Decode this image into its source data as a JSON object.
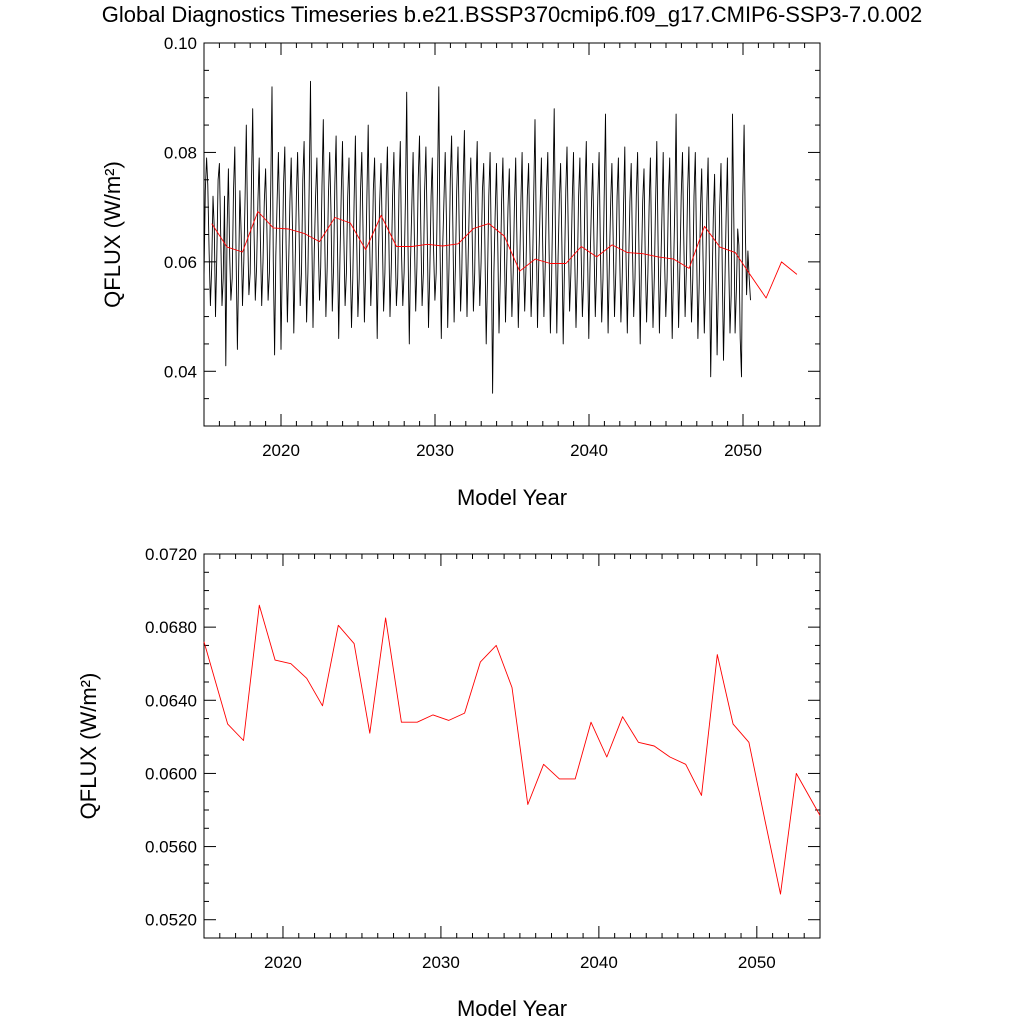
{
  "title": "Global Diagnostics Timeseries b.e21.BSSP370cmip6.f09_g17.CMIP6-SSP3-7.0.002",
  "chart_data": [
    {
      "type": "line",
      "title": "Global Diagnostics Timeseries b.e21.BSSP370cmip6.f09_g17.CMIP6-SSP3-7.0.002",
      "xlabel": "Model Year",
      "ylabel": "QFLUX (W/m²)",
      "xlim": [
        2015.0,
        2055.0
      ],
      "ylim": [
        0.03,
        0.1
      ],
      "x_ticks": [
        "2020",
        "2030",
        "2040",
        "2050"
      ],
      "y_ticks": [
        "0.04",
        "0.06",
        "0.08",
        "0.10"
      ],
      "grid": false,
      "series": [
        {
          "name": "",
          "color": "#000000",
          "x_start": 2015.0,
          "x_step": 0.0833,
          "values": [
            0.057,
            0.073,
            0.079,
            0.074,
            0.062,
            0.052,
            0.059,
            0.072,
            0.066,
            0.05,
            0.061,
            0.075,
            0.078,
            0.065,
            0.052,
            0.057,
            0.072,
            0.041,
            0.066,
            0.077,
            0.061,
            0.053,
            0.057,
            0.073,
            0.081,
            0.061,
            0.044,
            0.058,
            0.073,
            0.065,
            0.052,
            0.06,
            0.072,
            0.085,
            0.066,
            0.054,
            0.058,
            0.075,
            0.088,
            0.066,
            0.053,
            0.059,
            0.071,
            0.079,
            0.064,
            0.052,
            0.06,
            0.071,
            0.077,
            0.066,
            0.053,
            0.058,
            0.073,
            0.092,
            0.06,
            0.043,
            0.061,
            0.071,
            0.08,
            0.067,
            0.044,
            0.06,
            0.074,
            0.081,
            0.063,
            0.049,
            0.06,
            0.071,
            0.079,
            0.066,
            0.047,
            0.059,
            0.072,
            0.08,
            0.068,
            0.052,
            0.058,
            0.075,
            0.082,
            0.064,
            0.049,
            0.058,
            0.074,
            0.093,
            0.065,
            0.048,
            0.062,
            0.072,
            0.079,
            0.064,
            0.053,
            0.059,
            0.074,
            0.086,
            0.066,
            0.05,
            0.059,
            0.072,
            0.08,
            0.069,
            0.051,
            0.059,
            0.074,
            0.083,
            0.064,
            0.046,
            0.061,
            0.073,
            0.082,
            0.065,
            0.052,
            0.058,
            0.072,
            0.079,
            0.061,
            0.048,
            0.057,
            0.071,
            0.083,
            0.064,
            0.05,
            0.057,
            0.073,
            0.08,
            0.065,
            0.049,
            0.058,
            0.072,
            0.085,
            0.065,
            0.052,
            0.059,
            0.073,
            0.079,
            0.063,
            0.046,
            0.062,
            0.071,
            0.078,
            0.065,
            0.051,
            0.058,
            0.073,
            0.081,
            0.066,
            0.05,
            0.059,
            0.072,
            0.08,
            0.064,
            0.052,
            0.057,
            0.073,
            0.082,
            0.061,
            0.052,
            0.058,
            0.071,
            0.091,
            0.063,
            0.045,
            0.06,
            0.07,
            0.08,
            0.064,
            0.051,
            0.059,
            0.075,
            0.083,
            0.066,
            0.052,
            0.058,
            0.073,
            0.081,
            0.066,
            0.048,
            0.058,
            0.072,
            0.079,
            0.062,
            0.053,
            0.058,
            0.074,
            0.092,
            0.063,
            0.046,
            0.062,
            0.071,
            0.08,
            0.067,
            0.048,
            0.059,
            0.075,
            0.083,
            0.066,
            0.049,
            0.059,
            0.073,
            0.081,
            0.065,
            0.051,
            0.058,
            0.074,
            0.084,
            0.064,
            0.05,
            0.062,
            0.072,
            0.079,
            0.066,
            0.051,
            0.058,
            0.074,
            0.082,
            0.064,
            0.052,
            0.06,
            0.073,
            0.078,
            0.063,
            0.045,
            0.057,
            0.072,
            0.08,
            0.061,
            0.036,
            0.058,
            0.069,
            0.078,
            0.063,
            0.047,
            0.057,
            0.071,
            0.079,
            0.065,
            0.049,
            0.059,
            0.07,
            0.077,
            0.062,
            0.05,
            0.058,
            0.07,
            0.079,
            0.063,
            0.048,
            0.058,
            0.071,
            0.08,
            0.062,
            0.051,
            0.059,
            0.072,
            0.078,
            0.064,
            0.05,
            0.057,
            0.072,
            0.086,
            0.065,
            0.048,
            0.06,
            0.07,
            0.079,
            0.063,
            0.05,
            0.059,
            0.073,
            0.08,
            0.062,
            0.047,
            0.057,
            0.072,
            0.088,
            0.064,
            0.047,
            0.061,
            0.071,
            0.078,
            0.063,
            0.045,
            0.059,
            0.073,
            0.081,
            0.065,
            0.051,
            0.058,
            0.071,
            0.08,
            0.061,
            0.048,
            0.058,
            0.072,
            0.079,
            0.062,
            0.05,
            0.057,
            0.073,
            0.082,
            0.061,
            0.046,
            0.06,
            0.07,
            0.078,
            0.063,
            0.05,
            0.058,
            0.072,
            0.08,
            0.062,
            0.049,
            0.057,
            0.072,
            0.087,
            0.062,
            0.047,
            0.06,
            0.071,
            0.078,
            0.064,
            0.05,
            0.058,
            0.072,
            0.079,
            0.062,
            0.049,
            0.057,
            0.07,
            0.081,
            0.061,
            0.047,
            0.059,
            0.071,
            0.078,
            0.062,
            0.05,
            0.057,
            0.072,
            0.08,
            0.063,
            0.045,
            0.059,
            0.071,
            0.077,
            0.06,
            0.049,
            0.058,
            0.07,
            0.079,
            0.061,
            0.048,
            0.057,
            0.071,
            0.082,
            0.063,
            0.047,
            0.058,
            0.069,
            0.08,
            0.061,
            0.05,
            0.057,
            0.072,
            0.079,
            0.062,
            0.046,
            0.058,
            0.07,
            0.087,
            0.063,
            0.048,
            0.059,
            0.072,
            0.08,
            0.064,
            0.05,
            0.058,
            0.073,
            0.081,
            0.061,
            0.049,
            0.057,
            0.072,
            0.08,
            0.062,
            0.046,
            0.056,
            0.07,
            0.077,
            0.061,
            0.047,
            0.056,
            0.071,
            0.079,
            0.06,
            0.039,
            0.055,
            0.068,
            0.076,
            0.06,
            0.043,
            0.056,
            0.07,
            0.078,
            0.058,
            0.042,
            0.055,
            0.068,
            0.079,
            0.06,
            0.047,
            0.054,
            0.087,
            0.068,
            0.047,
            0.055,
            0.066,
            0.063,
            0.046,
            0.039,
            0.072,
            0.085,
            0.065,
            0.054,
            0.062,
            0.057,
            0.053
          ]
        },
        {
          "name": "",
          "color": "#ff0000",
          "x": [
            2015.5,
            2016.5,
            2017.5,
            2018.5,
            2019.5,
            2020.5,
            2021.5,
            2022.5,
            2023.5,
            2024.5,
            2025.5,
            2026.5,
            2027.5,
            2028.5,
            2029.5,
            2030.5,
            2031.5,
            2032.5,
            2033.5,
            2034.5,
            2035.5,
            2036.5,
            2037.5,
            2038.5,
            2039.5,
            2040.5,
            2041.5,
            2042.5,
            2043.5,
            2044.5,
            2045.5,
            2046.5,
            2047.5,
            2048.5,
            2049.5,
            2050.5,
            2051.5,
            2052.5,
            2053.5
          ],
          "values": [
            0.067,
            0.0627,
            0.0618,
            0.0692,
            0.0662,
            0.066,
            0.0652,
            0.0637,
            0.0681,
            0.0671,
            0.0622,
            0.0685,
            0.0628,
            0.0628,
            0.0632,
            0.0629,
            0.0633,
            0.0661,
            0.067,
            0.0647,
            0.0583,
            0.0605,
            0.0597,
            0.0597,
            0.0628,
            0.0609,
            0.0631,
            0.0617,
            0.0615,
            0.0609,
            0.0605,
            0.0588,
            0.0665,
            0.0627,
            0.0617,
            0.0575,
            0.0534,
            0.06,
            0.0577
          ]
        }
      ]
    },
    {
      "type": "line",
      "xlabel": "Model Year",
      "ylabel": "QFLUX (W/m²)",
      "xlim": [
        2015.0,
        2054.0
      ],
      "ylim": [
        0.051,
        0.072
      ],
      "x_ticks": [
        "2020",
        "2030",
        "2040",
        "2050"
      ],
      "y_ticks": [
        "0.0520",
        "0.0560",
        "0.0600",
        "0.0640",
        "0.0680",
        "0.0720"
      ],
      "grid": false,
      "series": [
        {
          "name": "",
          "color": "#ff0000",
          "x": [
            2015.0,
            2016.5,
            2017.5,
            2018.5,
            2019.5,
            2020.5,
            2021.5,
            2022.5,
            2023.5,
            2024.5,
            2025.5,
            2026.5,
            2027.5,
            2028.5,
            2029.5,
            2030.5,
            2031.5,
            2032.5,
            2033.5,
            2034.5,
            2035.5,
            2036.5,
            2037.5,
            2038.5,
            2039.5,
            2040.5,
            2041.5,
            2042.5,
            2043.5,
            2044.5,
            2045.5,
            2046.5,
            2047.5,
            2048.5,
            2049.5,
            2050.5,
            2051.5,
            2052.5,
            2054.0
          ],
          "values": [
            0.0672,
            0.0627,
            0.0618,
            0.0692,
            0.0662,
            0.066,
            0.0652,
            0.0637,
            0.0681,
            0.0671,
            0.0622,
            0.0685,
            0.0628,
            0.0628,
            0.0632,
            0.0629,
            0.0633,
            0.0661,
            0.067,
            0.0647,
            0.0583,
            0.0605,
            0.0597,
            0.0597,
            0.0628,
            0.0609,
            0.0631,
            0.0617,
            0.0615,
            0.0609,
            0.0605,
            0.0588,
            0.0665,
            0.0627,
            0.0617,
            0.0575,
            0.0534,
            0.06,
            0.0577
          ]
        }
      ]
    }
  ]
}
